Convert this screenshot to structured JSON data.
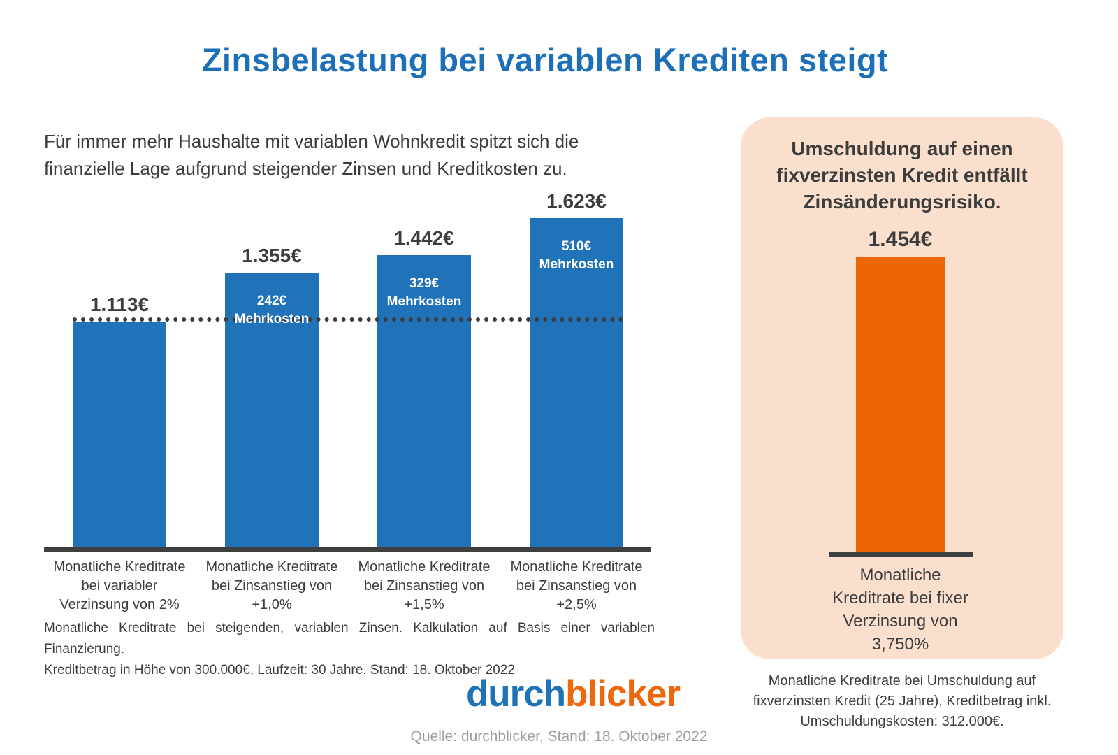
{
  "title": "Zinsbelastung bei variablen Krediten steigt",
  "subtitle": "Für immer mehr Haushalte mit variablen Wohnkredit spitzt sich die\nfinanzielle Lage aufgrund steigender Zinsen und Kreditkosten zu.",
  "chart_data": [
    {
      "type": "bar",
      "title": "Monatliche Kreditrate bei steigenden, variablen Zinsen",
      "categories": [
        "Monatliche Kreditrate\nbei variabler\nVerzinsung von 2%",
        "Monatliche Kreditrate\nbei Zinsanstieg von\n+1,0%",
        "Monatliche Kreditrate\nbei Zinsanstieg von\n+1,5%",
        "Monatliche Kreditrate\nbei Zinsanstieg von\n+2,5%"
      ],
      "values": [
        1113,
        1355,
        1442,
        1623
      ],
      "value_labels": [
        "1.113€",
        "1.355€",
        "1.442€",
        "1.623€"
      ],
      "extra_cost_labels": [
        null,
        "242€\nMehrkosten",
        "329€\nMehrkosten",
        "510€\nMehrkosten"
      ],
      "unit": "€",
      "ylim": [
        0,
        1700
      ],
      "grid": false,
      "bar_color": "#2173b9",
      "reference_line": {
        "at_value": 1113,
        "style": "dotted",
        "color": "#3d3d3d"
      }
    },
    {
      "type": "bar",
      "title": "Umschuldung auf einen\nfixverzinsten Kredit entfällt\nZinsänderungsrisiko.",
      "categories": [
        "Monatliche\nKreditrate bei fixer\nVerzinsung von\n3,750%"
      ],
      "values": [
        1454
      ],
      "value_labels": [
        "1.454€"
      ],
      "unit": "€",
      "ylim": [
        0,
        1700
      ],
      "grid": false,
      "bar_color": "#ec6608",
      "panel_bg": "#fadfcd"
    }
  ],
  "footnote_line1": "Monatliche Kreditrate bei steigenden, variablen Zinsen. Kalkulation auf Basis einer variablen Finanzierung.",
  "footnote_line2": "Kreditbetrag in Höhe von 300.000€, Laufzeit: 30 Jahre. Stand: 18. Oktober 2022",
  "panel_footnote": "Monatliche Kreditrate bei Umschuldung auf\nfixverzinsten Kredit (25 Jahre), Kreditbetrag inkl.\nUmschuldungskosten: 312.000€.",
  "logo": {
    "part1": "durch",
    "part2": "blicker"
  },
  "source": "Quelle: durchblicker, Stand: 18. Oktober 2022",
  "colors": {
    "title_blue": "#1d70b7",
    "bar_blue": "#2173b9",
    "bar_orange": "#ec6608",
    "panel_peach": "#fadfcd",
    "text_dark": "#3d3d3d",
    "axis_dark": "#3f3f3f",
    "logo_blue": "#1e73b8",
    "logo_orange": "#ee670c",
    "source_gray": "#9e9e9e"
  }
}
